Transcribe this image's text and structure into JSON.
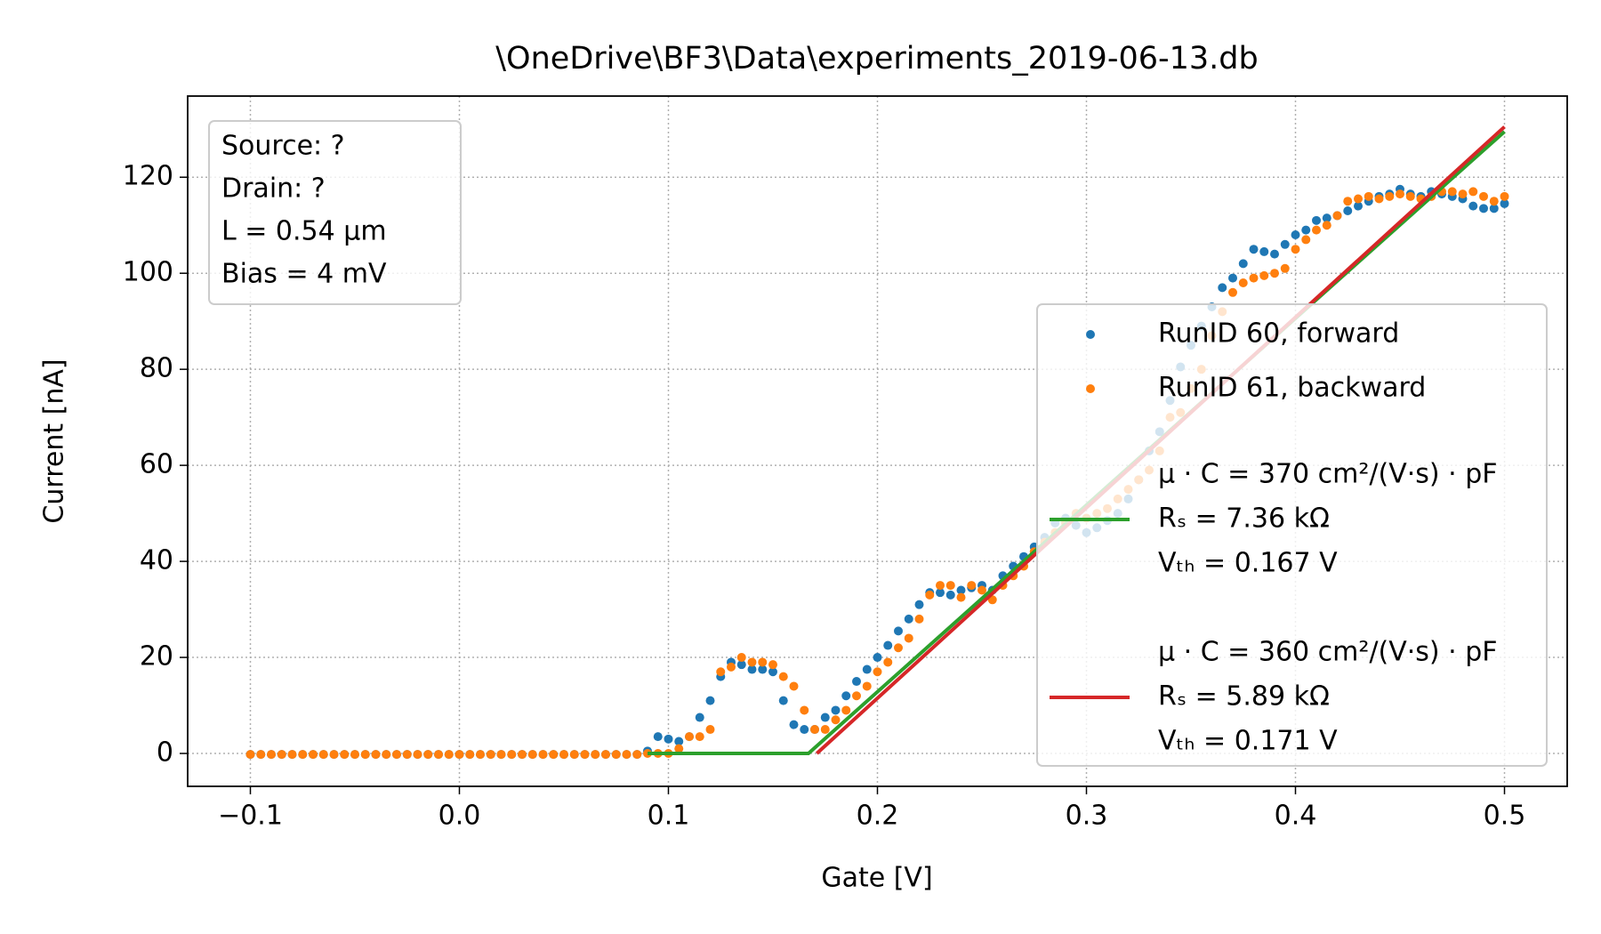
{
  "chart_data": {
    "type": "scatter",
    "title": "\\OneDrive\\BF3\\Data\\experiments_2019-06-13.db",
    "x_label": "Gate [V]",
    "y_label": "Current [nA]",
    "annotation": [
      "Source: ?",
      "Drain: ?",
      "L = 0.54 μm",
      "Bias = 4 mV"
    ],
    "x": [
      -0.1,
      -0.095,
      -0.09,
      -0.085,
      -0.08,
      -0.075,
      -0.07,
      -0.065,
      -0.06,
      -0.055,
      -0.05,
      -0.045,
      -0.04,
      -0.035,
      -0.03,
      -0.025,
      -0.02,
      -0.015,
      -0.01,
      -0.005,
      0,
      0.005,
      0.01,
      0.015,
      0.02,
      0.025,
      0.03,
      0.035,
      0.04,
      0.045,
      0.05,
      0.055,
      0.06,
      0.065,
      0.07,
      0.075,
      0.08,
      0.085,
      0.09,
      0.095,
      0.1,
      0.105,
      0.11,
      0.115,
      0.12,
      0.125,
      0.13,
      0.135,
      0.14,
      0.145,
      0.15,
      0.155,
      0.16,
      0.165,
      0.17,
      0.175,
      0.18,
      0.185,
      0.19,
      0.195,
      0.2,
      0.205,
      0.21,
      0.215,
      0.22,
      0.225,
      0.23,
      0.235,
      0.24,
      0.245,
      0.25,
      0.255,
      0.26,
      0.265,
      0.27,
      0.275,
      0.28,
      0.285,
      0.29,
      0.295,
      0.3,
      0.305,
      0.31,
      0.315,
      0.32,
      0.325,
      0.33,
      0.335,
      0.34,
      0.345,
      0.35,
      0.355,
      0.36,
      0.365,
      0.37,
      0.375,
      0.38,
      0.385,
      0.39,
      0.395,
      0.4,
      0.405,
      0.41,
      0.415,
      0.42,
      0.425,
      0.43,
      0.435,
      0.44,
      0.445,
      0.45,
      0.455,
      0.46,
      0.465,
      0.47,
      0.475,
      0.48,
      0.485,
      0.49,
      0.495,
      0.5
    ],
    "series": [
      {
        "name": "RunID 60, forward",
        "color": "#1f77b4",
        "style": "markers",
        "values": [
          -0.2,
          -0.2,
          -0.2,
          -0.2,
          -0.2,
          -0.2,
          -0.2,
          -0.2,
          -0.2,
          -0.2,
          -0.2,
          -0.2,
          -0.2,
          -0.2,
          -0.2,
          -0.2,
          -0.2,
          -0.2,
          -0.2,
          -0.2,
          -0.2,
          -0.2,
          -0.2,
          -0.2,
          -0.2,
          -0.2,
          -0.2,
          -0.2,
          -0.2,
          -0.2,
          -0.2,
          -0.2,
          -0.2,
          -0.2,
          -0.2,
          -0.2,
          -0.2,
          -0.2,
          0.5,
          3.5,
          3,
          2.5,
          3.5,
          7.5,
          11,
          16,
          19,
          18.5,
          17.5,
          17.5,
          17,
          11,
          6,
          5,
          5,
          7.5,
          9,
          12,
          15,
          17.5,
          20,
          22.5,
          25.5,
          28,
          31,
          33.5,
          33.5,
          33,
          34,
          34.5,
          35,
          34,
          37,
          39,
          41,
          43,
          45,
          48,
          49,
          47.5,
          46,
          47,
          48.5,
          50,
          53,
          57,
          63,
          67,
          73.5,
          80.5,
          85,
          89,
          93,
          97,
          99,
          102,
          105,
          104.5,
          104,
          106,
          108,
          109,
          111,
          111.5,
          112,
          113,
          114,
          115,
          116,
          116.5,
          117.5,
          116.5,
          116,
          117,
          116.5,
          116,
          115.5,
          114,
          113.5,
          113.5,
          114.5
        ]
      },
      {
        "name": "RunID 61, backward",
        "color": "#ff7f0e",
        "style": "markers",
        "values": [
          -0.2,
          -0.2,
          -0.2,
          -0.2,
          -0.2,
          -0.2,
          -0.2,
          -0.2,
          -0.2,
          -0.2,
          -0.2,
          -0.2,
          -0.2,
          -0.2,
          -0.2,
          -0.2,
          -0.2,
          -0.2,
          -0.2,
          -0.2,
          -0.2,
          -0.2,
          -0.2,
          -0.2,
          -0.2,
          -0.2,
          -0.2,
          -0.2,
          -0.2,
          -0.2,
          -0.2,
          -0.2,
          -0.2,
          -0.2,
          -0.2,
          -0.2,
          -0.2,
          -0.2,
          0,
          0,
          0,
          1,
          3.5,
          3.5,
          5,
          17,
          18,
          20,
          19,
          19,
          18.5,
          16,
          14,
          9,
          5,
          5,
          7,
          9,
          12,
          14,
          17,
          19,
          22,
          24,
          28,
          33,
          35,
          35,
          32.5,
          35,
          34,
          32,
          35,
          37,
          39,
          42,
          44,
          46,
          48,
          50,
          49,
          50,
          51,
          53,
          55,
          57,
          59,
          63,
          70,
          71,
          76,
          80,
          87,
          92,
          96,
          98,
          99,
          99.5,
          100,
          101,
          105,
          107,
          109,
          110,
          112,
          115,
          115.5,
          116,
          115.5,
          116,
          116.5,
          116,
          115.5,
          116,
          117,
          117,
          116.5,
          117,
          116,
          115,
          116
        ]
      },
      {
        "name": [
          "μ · C = 370 cm²/(V·s) · pF",
          "Rₛ = 7.36 kΩ",
          "Vₜₕ = 0.167 V"
        ],
        "color": "#2ca02c",
        "style": "line",
        "x": [
          0.09,
          0.167,
          0.5
        ],
        "values": [
          0,
          0,
          129.5
        ]
      },
      {
        "name": [
          "μ · C = 360 cm²/(V·s) · pF",
          "Rₛ = 5.89 kΩ",
          "Vₜₕ = 0.171 V"
        ],
        "color": "#d62728",
        "style": "line",
        "x": [
          0.171,
          0.5
        ],
        "values": [
          0,
          130.5
        ]
      }
    ],
    "xlim": [
      -0.13,
      0.53
    ],
    "ylim": [
      -6.85,
      136.9
    ],
    "xticks": [
      {
        "value": -0.1,
        "label": "−0.1"
      },
      {
        "value": 0,
        "label": "0.0"
      },
      0.1,
      0.2,
      0.3,
      0.4,
      0.5
    ],
    "yticks": [
      0,
      20,
      40,
      60,
      80,
      100,
      120
    ],
    "grid": true,
    "legend": "right"
  }
}
